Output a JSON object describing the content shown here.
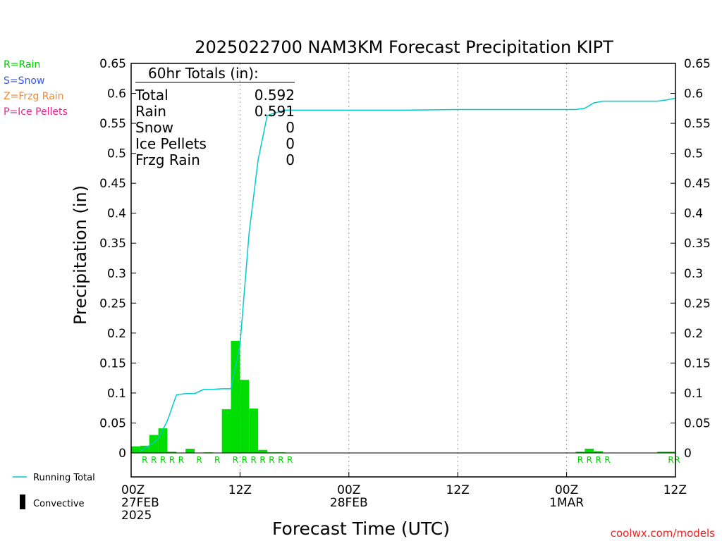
{
  "title": "2025022700 NAM3KM Forecast Precipitation KIPT",
  "legend_types": [
    {
      "label": "R=Rain",
      "color": "#00cc00"
    },
    {
      "label": "S=Snow",
      "color": "#3355ee"
    },
    {
      "label": "Z=Frzg Rain",
      "color": "#ee8833"
    },
    {
      "label": "P=Ice Pellets",
      "color": "#ee2288"
    }
  ],
  "totals": {
    "header": "60hr Totals (in):",
    "rows": [
      {
        "label": "Total",
        "value": "0.592"
      },
      {
        "label": "Rain",
        "value": "0.591"
      },
      {
        "label": "Snow",
        "value": "0"
      },
      {
        "label": "Ice Pellets",
        "value": "0"
      },
      {
        "label": "Frzg Rain",
        "value": "0"
      }
    ]
  },
  "bottom_legend": {
    "running_total": "Running Total",
    "convective": "Convective"
  },
  "watermark": "coolwx.com/models",
  "colors": {
    "bar": "#00dd00",
    "running_total": "#00cccc",
    "ptype_rain": "#00cc00",
    "grid": "#999999"
  },
  "chart_data": {
    "type": "bar",
    "title": "2025022700 NAM3KM Forecast Precipitation KIPT",
    "xlabel": "Forecast Time (UTC)",
    "ylabel": "Precipitation (in)",
    "xlim": [
      0,
      60
    ],
    "ylim": [
      -0.04,
      0.65
    ],
    "y_ticks": [
      0,
      0.05,
      0.1,
      0.15,
      0.2,
      0.25,
      0.3,
      0.35,
      0.4,
      0.45,
      0.5,
      0.55,
      0.6,
      0.65
    ],
    "y_tick_labels": [
      "0",
      "0.05",
      "0.1",
      "0.15",
      "0.2",
      "0.25",
      "0.3",
      "0.35",
      "0.4",
      "0.45",
      "0.5",
      "0.55",
      "0.6",
      "0.65"
    ],
    "x_ticks": [
      {
        "hour": 0,
        "lines": [
          "00Z",
          "27FEB",
          "2025"
        ]
      },
      {
        "hour": 12,
        "lines": [
          "12Z"
        ]
      },
      {
        "hour": 24,
        "lines": [
          "00Z",
          "28FEB"
        ]
      },
      {
        "hour": 36,
        "lines": [
          "12Z"
        ]
      },
      {
        "hour": 48,
        "lines": [
          "00Z",
          "1MAR"
        ]
      },
      {
        "hour": 60,
        "lines": [
          "12Z"
        ]
      }
    ],
    "grid_hours": [
      12,
      24,
      36,
      48
    ],
    "hourly_precip": [
      {
        "hour": 1,
        "value": 0.011
      },
      {
        "hour": 2,
        "value": 0.012
      },
      {
        "hour": 3,
        "value": 0.03
      },
      {
        "hour": 4,
        "value": 0.041
      },
      {
        "hour": 5,
        "value": 0.002
      },
      {
        "hour": 7,
        "value": 0.007
      },
      {
        "hour": 9,
        "value": 0.001
      },
      {
        "hour": 11,
        "value": 0.073
      },
      {
        "hour": 12,
        "value": 0.187
      },
      {
        "hour": 13,
        "value": 0.122
      },
      {
        "hour": 14,
        "value": 0.074
      },
      {
        "hour": 15,
        "value": 0.005
      },
      {
        "hour": 16,
        "value": 0.001
      },
      {
        "hour": 17,
        "value": 0.001
      },
      {
        "hour": 50,
        "value": 0.002
      },
      {
        "hour": 51,
        "value": 0.007
      },
      {
        "hour": 52,
        "value": 0.003
      },
      {
        "hour": 59,
        "value": 0.002
      },
      {
        "hour": 60,
        "value": 0.002
      }
    ],
    "ptype_markers": [
      {
        "hour": 1.5,
        "label": "R"
      },
      {
        "hour": 2.5,
        "label": "R"
      },
      {
        "hour": 3.5,
        "label": "R"
      },
      {
        "hour": 4.5,
        "label": "R"
      },
      {
        "hour": 5.5,
        "label": "R"
      },
      {
        "hour": 7.5,
        "label": "R"
      },
      {
        "hour": 9.5,
        "label": "R"
      },
      {
        "hour": 11.5,
        "label": "R"
      },
      {
        "hour": 12.5,
        "label": "R"
      },
      {
        "hour": 13.5,
        "label": "R"
      },
      {
        "hour": 14.5,
        "label": "R"
      },
      {
        "hour": 15.5,
        "label": "R"
      },
      {
        "hour": 16.5,
        "label": "R"
      },
      {
        "hour": 17.5,
        "label": "R"
      },
      {
        "hour": 49.5,
        "label": "R"
      },
      {
        "hour": 50.5,
        "label": "R"
      },
      {
        "hour": 51.5,
        "label": "R"
      },
      {
        "hour": 52.5,
        "label": "R"
      },
      {
        "hour": 59.5,
        "label": "R"
      },
      {
        "hour": 60.2,
        "label": "R"
      }
    ],
    "running_total": {
      "name": "Running Total",
      "hours": [
        1,
        2,
        3,
        4,
        5,
        6,
        7,
        8,
        9,
        10,
        11,
        12,
        13,
        14,
        15,
        16,
        17,
        20,
        24,
        30,
        36,
        40,
        44,
        48,
        49,
        50,
        51,
        52,
        54,
        56,
        58,
        59,
        60
      ],
      "values": [
        0.003,
        0.012,
        0.024,
        0.054,
        0.097,
        0.099,
        0.099,
        0.106,
        0.106,
        0.107,
        0.107,
        0.18,
        0.367,
        0.489,
        0.563,
        0.568,
        0.572,
        0.572,
        0.572,
        0.572,
        0.573,
        0.573,
        0.573,
        0.573,
        0.573,
        0.575,
        0.584,
        0.587,
        0.587,
        0.587,
        0.587,
        0.589,
        0.592
      ]
    }
  }
}
